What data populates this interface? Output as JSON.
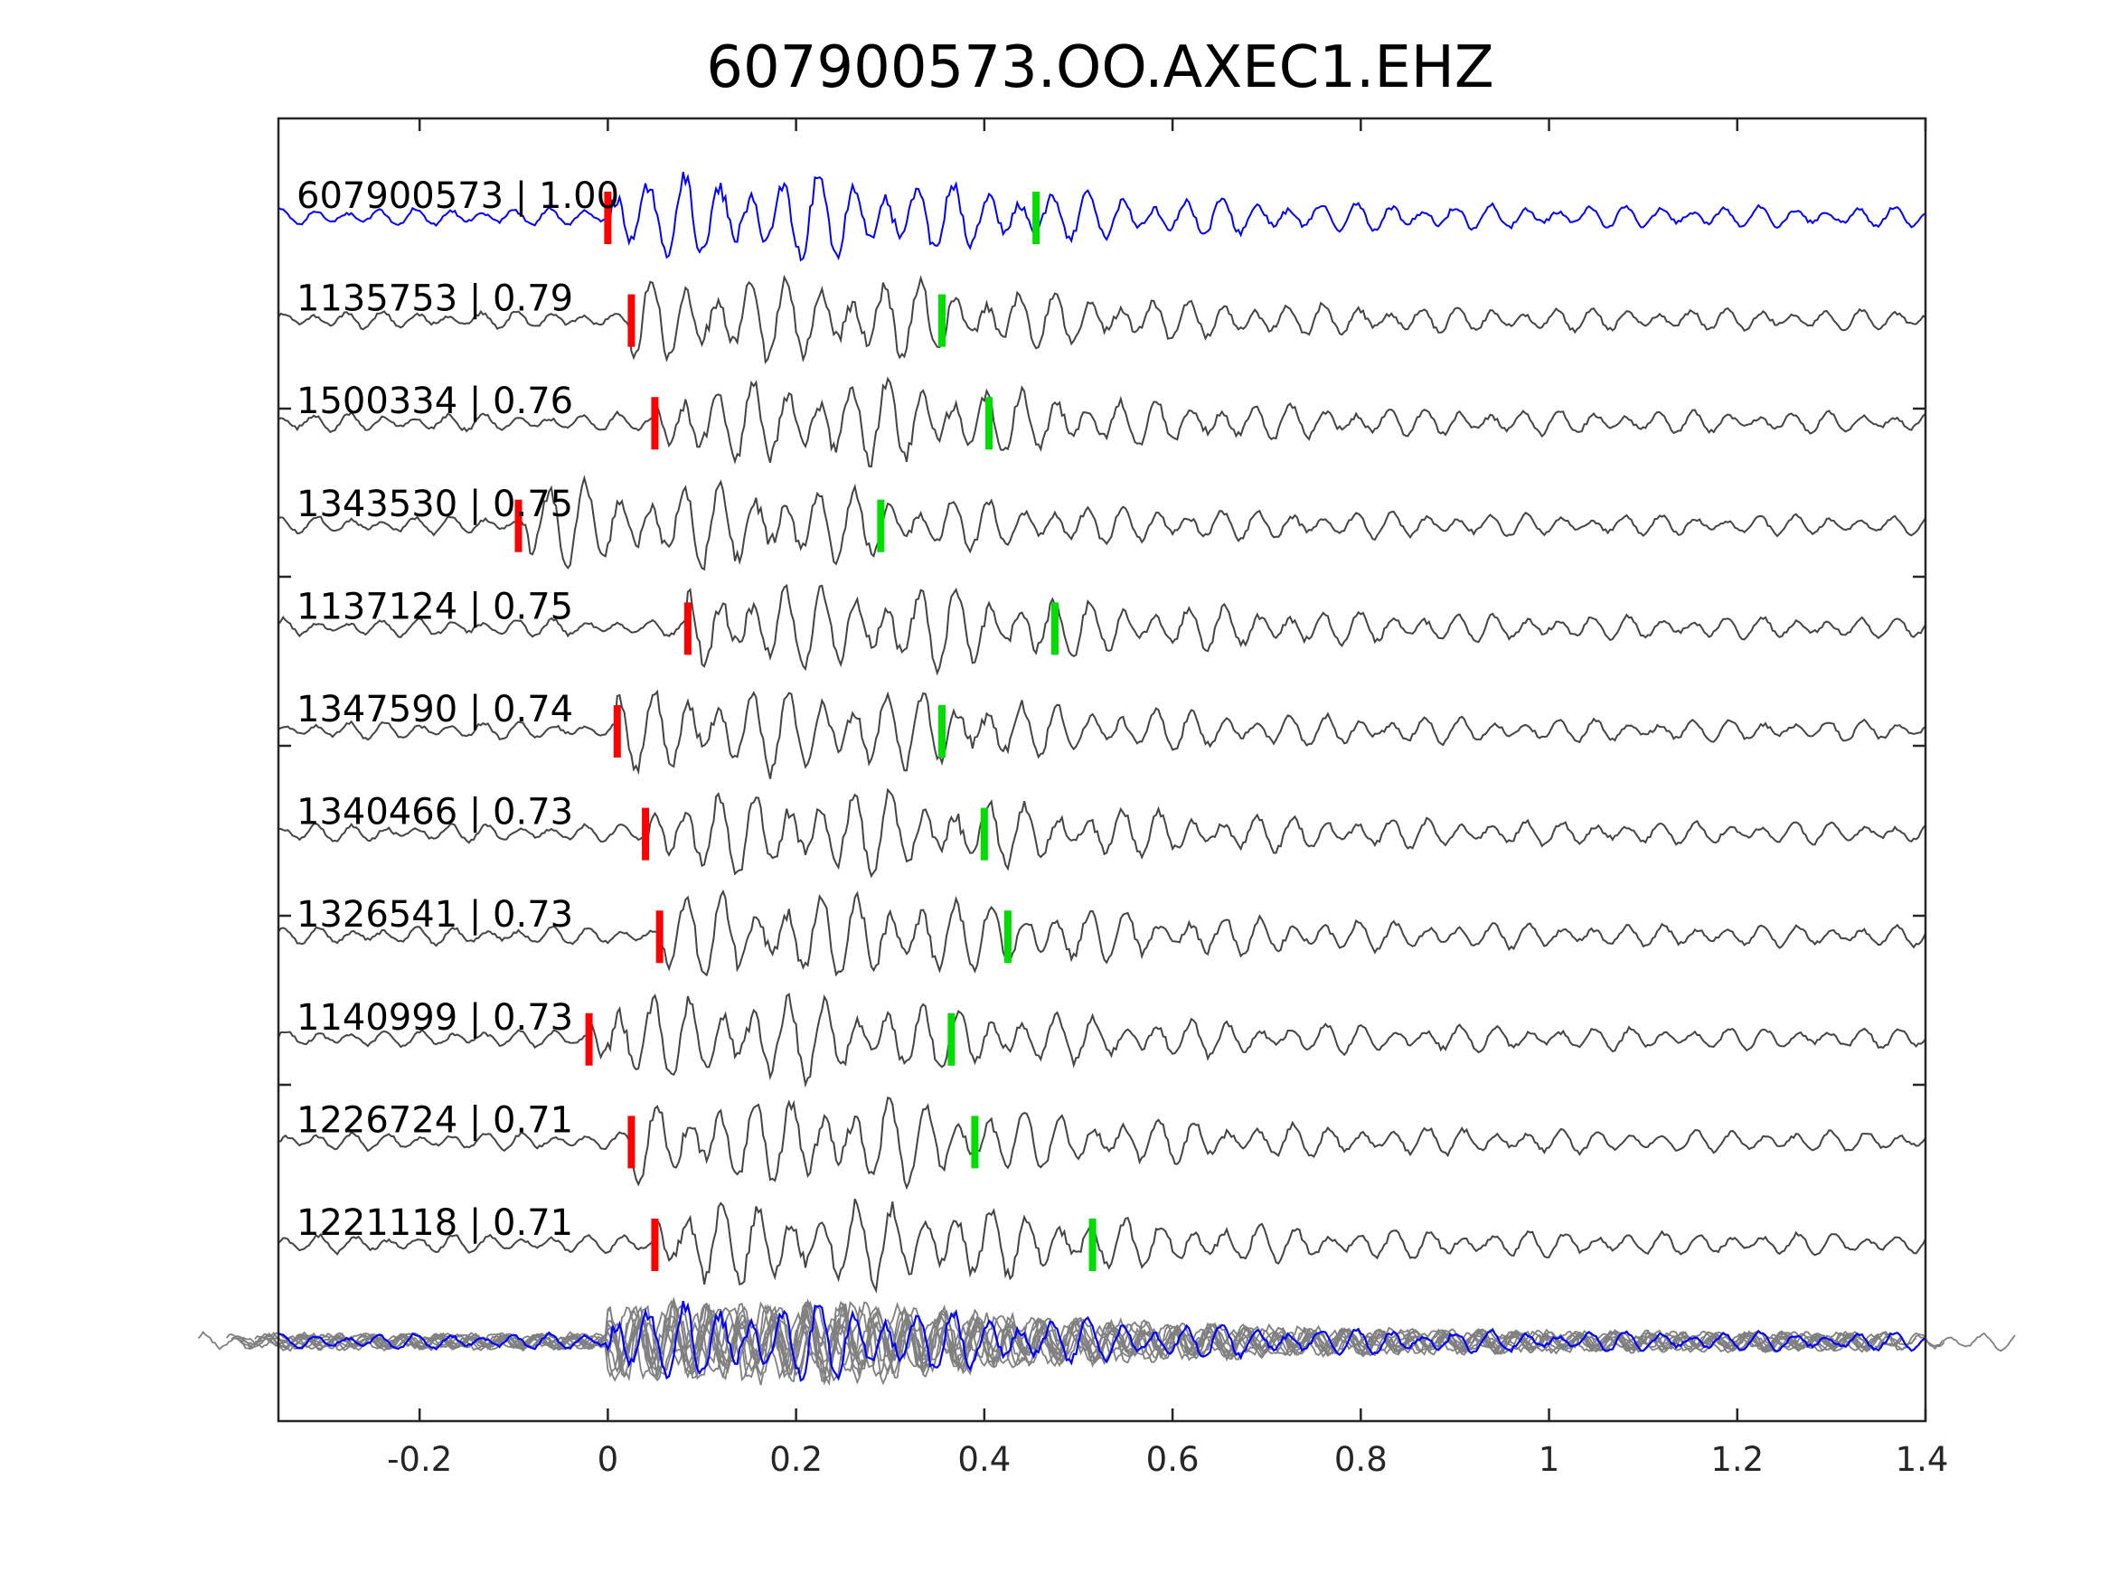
{
  "chart_data": {
    "type": "line",
    "title": "607900573.OO.AXEC1.EHZ",
    "xlabel": "",
    "ylabel": "",
    "xlim": [
      -0.35,
      1.4
    ],
    "xticks": [
      -0.2,
      0,
      0.2,
      0.4,
      0.6,
      0.8,
      1,
      1.2,
      1.4
    ],
    "xtick_labels": [
      "-0.2",
      "0",
      "0.2",
      "0.4",
      "0.6",
      "0.8",
      "1",
      "1.2",
      "1.4"
    ],
    "grid": false,
    "legend": "none",
    "colors": {
      "reference": "#0000ff",
      "neighbor": "#444444",
      "overlay_neighbor": "#808080",
      "p_pick": "#ff0000",
      "s_pick": "#00dd00"
    },
    "traces": [
      {
        "label": "607900573 | 1.00",
        "event_id": "607900573",
        "correlation": 1.0,
        "p_pick": 0.0,
        "s_pick": 0.455,
        "reference": true
      },
      {
        "label": "1135753 | 0.79",
        "event_id": "1135753",
        "correlation": 0.79,
        "p_pick": 0.025,
        "s_pick": 0.355
      },
      {
        "label": "1500334 | 0.76",
        "event_id": "1500334",
        "correlation": 0.76,
        "p_pick": 0.05,
        "s_pick": 0.405
      },
      {
        "label": "1343530 | 0.75",
        "event_id": "1343530",
        "correlation": 0.75,
        "p_pick": -0.095,
        "s_pick": 0.29
      },
      {
        "label": "1137124 | 0.75",
        "event_id": "1137124",
        "correlation": 0.75,
        "p_pick": 0.085,
        "s_pick": 0.475
      },
      {
        "label": "1347590 | 0.74",
        "event_id": "1347590",
        "correlation": 0.74,
        "p_pick": 0.01,
        "s_pick": 0.355
      },
      {
        "label": "1340466 | 0.73",
        "event_id": "1340466",
        "correlation": 0.73,
        "p_pick": 0.04,
        "s_pick": 0.4
      },
      {
        "label": "1326541 | 0.73",
        "event_id": "1326541",
        "correlation": 0.73,
        "p_pick": 0.055,
        "s_pick": 0.425
      },
      {
        "label": "1140999 | 0.73",
        "event_id": "1140999",
        "correlation": 0.73,
        "p_pick": -0.02,
        "s_pick": 0.365
      },
      {
        "label": "1226724 | 0.71",
        "event_id": "1226724",
        "correlation": 0.71,
        "p_pick": 0.025,
        "s_pick": 0.39
      },
      {
        "label": "1221118 | 0.71",
        "event_id": "1221118",
        "correlation": 0.71,
        "p_pick": 0.05,
        "s_pick": 0.515
      }
    ],
    "overlay": {
      "description_shown": false
    }
  }
}
